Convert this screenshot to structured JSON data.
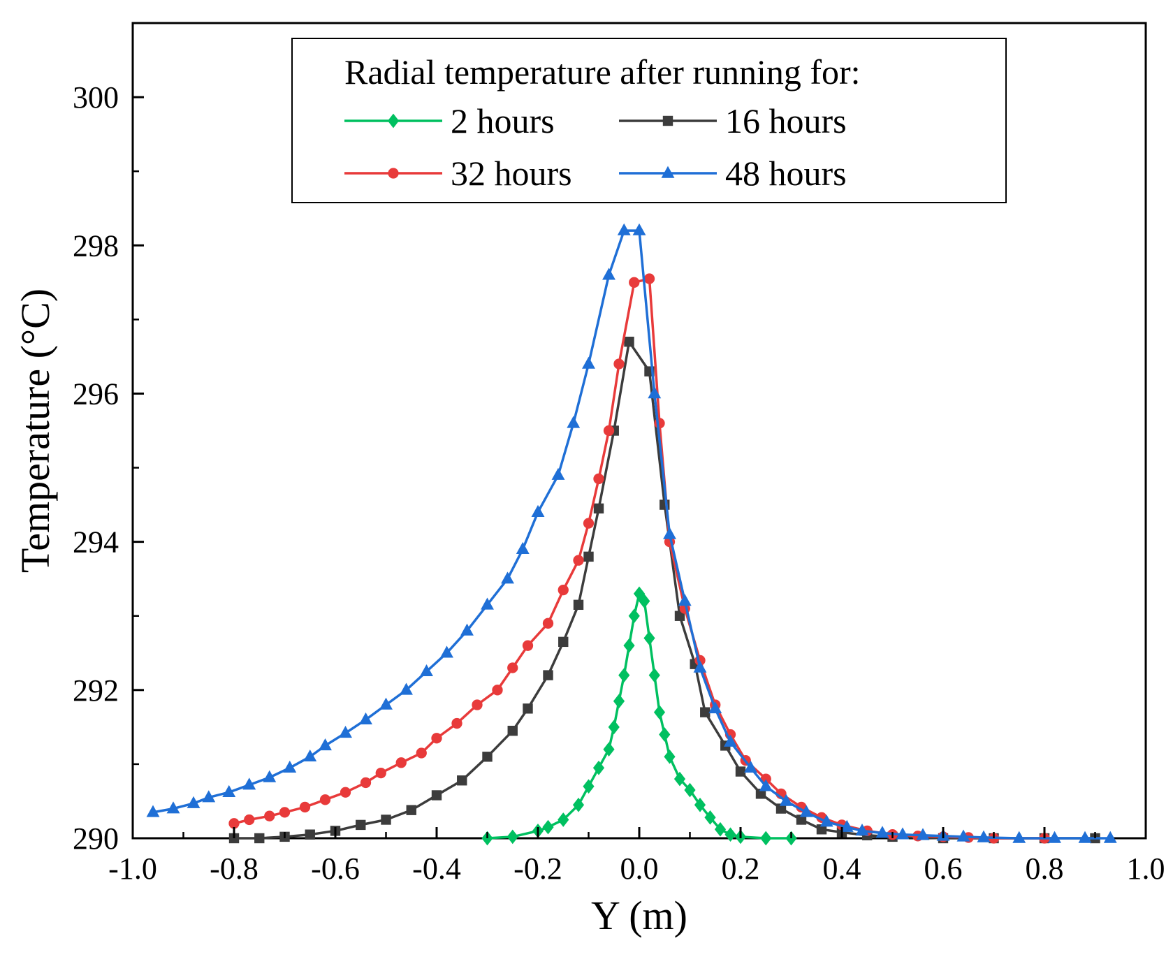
{
  "chart_data": {
    "type": "line",
    "title": "",
    "xlabel": "Y (m)",
    "ylabel": "Temperature (°C)",
    "xlim": [
      -1.0,
      1.0
    ],
    "ylim": [
      290,
      301
    ],
    "x_ticks": [
      "-1.0",
      "-0.8",
      "-0.6",
      "-0.4",
      "-0.2",
      "0.0",
      "0.2",
      "0.4",
      "0.6",
      "0.8",
      "1.0"
    ],
    "y_ticks": [
      "290",
      "292",
      "294",
      "296",
      "298",
      "300"
    ],
    "grid": false,
    "legend": {
      "title": "Radial temperature after running for:",
      "placement": "top-center",
      "columns": 2
    },
    "series": [
      {
        "name": "2 hours",
        "color": "#00c060",
        "marker": "diamond",
        "points": [
          [
            -0.3,
            290.0
          ],
          [
            -0.25,
            290.02
          ],
          [
            -0.2,
            290.1
          ],
          [
            -0.18,
            290.15
          ],
          [
            -0.15,
            290.25
          ],
          [
            -0.12,
            290.45
          ],
          [
            -0.1,
            290.7
          ],
          [
            -0.08,
            290.95
          ],
          [
            -0.06,
            291.2
          ],
          [
            -0.05,
            291.5
          ],
          [
            -0.04,
            291.85
          ],
          [
            -0.03,
            292.2
          ],
          [
            -0.02,
            292.6
          ],
          [
            -0.01,
            293.0
          ],
          [
            0.0,
            293.3
          ],
          [
            0.01,
            293.2
          ],
          [
            0.02,
            292.7
          ],
          [
            0.03,
            292.2
          ],
          [
            0.04,
            291.7
          ],
          [
            0.05,
            291.4
          ],
          [
            0.06,
            291.1
          ],
          [
            0.08,
            290.8
          ],
          [
            0.1,
            290.65
          ],
          [
            0.12,
            290.45
          ],
          [
            0.14,
            290.28
          ],
          [
            0.16,
            290.12
          ],
          [
            0.18,
            290.05
          ],
          [
            0.2,
            290.02
          ],
          [
            0.25,
            290.0
          ],
          [
            0.3,
            290.0
          ]
        ]
      },
      {
        "name": "16 hours",
        "color": "#3c3c3c",
        "marker": "square",
        "points": [
          [
            -0.8,
            290.0
          ],
          [
            -0.75,
            290.0
          ],
          [
            -0.7,
            290.02
          ],
          [
            -0.65,
            290.05
          ],
          [
            -0.6,
            290.1
          ],
          [
            -0.55,
            290.18
          ],
          [
            -0.5,
            290.25
          ],
          [
            -0.45,
            290.38
          ],
          [
            -0.4,
            290.58
          ],
          [
            -0.35,
            290.78
          ],
          [
            -0.3,
            291.1
          ],
          [
            -0.25,
            291.45
          ],
          [
            -0.22,
            291.75
          ],
          [
            -0.18,
            292.2
          ],
          [
            -0.15,
            292.65
          ],
          [
            -0.12,
            293.15
          ],
          [
            -0.1,
            293.8
          ],
          [
            -0.08,
            294.45
          ],
          [
            -0.05,
            295.5
          ],
          [
            -0.02,
            296.7
          ],
          [
            0.02,
            296.3
          ],
          [
            0.05,
            294.5
          ],
          [
            0.08,
            293.0
          ],
          [
            0.11,
            292.35
          ],
          [
            0.13,
            291.7
          ],
          [
            0.17,
            291.25
          ],
          [
            0.2,
            290.9
          ],
          [
            0.24,
            290.6
          ],
          [
            0.28,
            290.4
          ],
          [
            0.32,
            290.25
          ],
          [
            0.36,
            290.12
          ],
          [
            0.4,
            290.08
          ],
          [
            0.45,
            290.04
          ],
          [
            0.5,
            290.02
          ],
          [
            0.6,
            290.0
          ],
          [
            0.7,
            290.0
          ],
          [
            0.8,
            290.0
          ],
          [
            0.9,
            290.0
          ]
        ]
      },
      {
        "name": "32 hours",
        "color": "#e83a3a",
        "marker": "circle",
        "points": [
          [
            -0.8,
            290.2
          ],
          [
            -0.77,
            290.25
          ],
          [
            -0.73,
            290.3
          ],
          [
            -0.7,
            290.35
          ],
          [
            -0.66,
            290.42
          ],
          [
            -0.62,
            290.52
          ],
          [
            -0.58,
            290.62
          ],
          [
            -0.54,
            290.75
          ],
          [
            -0.51,
            290.88
          ],
          [
            -0.47,
            291.02
          ],
          [
            -0.43,
            291.15
          ],
          [
            -0.4,
            291.35
          ],
          [
            -0.36,
            291.55
          ],
          [
            -0.32,
            291.8
          ],
          [
            -0.28,
            292.0
          ],
          [
            -0.25,
            292.3
          ],
          [
            -0.22,
            292.6
          ],
          [
            -0.18,
            292.9
          ],
          [
            -0.15,
            293.35
          ],
          [
            -0.12,
            293.75
          ],
          [
            -0.1,
            294.25
          ],
          [
            -0.08,
            294.85
          ],
          [
            -0.06,
            295.5
          ],
          [
            -0.04,
            296.4
          ],
          [
            -0.01,
            297.5
          ],
          [
            0.02,
            297.55
          ],
          [
            0.04,
            295.6
          ],
          [
            0.06,
            294.0
          ],
          [
            0.09,
            293.1
          ],
          [
            0.12,
            292.4
          ],
          [
            0.15,
            291.8
          ],
          [
            0.18,
            291.4
          ],
          [
            0.21,
            291.05
          ],
          [
            0.25,
            290.8
          ],
          [
            0.28,
            290.6
          ],
          [
            0.32,
            290.42
          ],
          [
            0.36,
            290.28
          ],
          [
            0.4,
            290.18
          ],
          [
            0.45,
            290.1
          ],
          [
            0.5,
            290.05
          ],
          [
            0.55,
            290.03
          ],
          [
            0.6,
            290.02
          ],
          [
            0.65,
            290.01
          ],
          [
            0.7,
            290.0
          ],
          [
            0.8,
            290.0
          ]
        ]
      },
      {
        "name": "48 hours",
        "color": "#1f6fd6",
        "marker": "triangle",
        "points": [
          [
            -0.96,
            290.35
          ],
          [
            -0.92,
            290.4
          ],
          [
            -0.88,
            290.47
          ],
          [
            -0.85,
            290.55
          ],
          [
            -0.81,
            290.62
          ],
          [
            -0.77,
            290.72
          ],
          [
            -0.73,
            290.82
          ],
          [
            -0.69,
            290.95
          ],
          [
            -0.65,
            291.1
          ],
          [
            -0.62,
            291.25
          ],
          [
            -0.58,
            291.42
          ],
          [
            -0.54,
            291.6
          ],
          [
            -0.5,
            291.8
          ],
          [
            -0.46,
            292.0
          ],
          [
            -0.42,
            292.25
          ],
          [
            -0.38,
            292.5
          ],
          [
            -0.34,
            292.8
          ],
          [
            -0.3,
            293.15
          ],
          [
            -0.26,
            293.5
          ],
          [
            -0.23,
            293.9
          ],
          [
            -0.2,
            294.4
          ],
          [
            -0.16,
            294.9
          ],
          [
            -0.13,
            295.6
          ],
          [
            -0.1,
            296.4
          ],
          [
            -0.06,
            297.6
          ],
          [
            -0.03,
            298.2
          ],
          [
            0.0,
            298.2
          ],
          [
            0.03,
            296.0
          ],
          [
            0.06,
            294.1
          ],
          [
            0.09,
            293.2
          ],
          [
            0.12,
            292.3
          ],
          [
            0.15,
            291.75
          ],
          [
            0.18,
            291.3
          ],
          [
            0.22,
            290.95
          ],
          [
            0.25,
            290.7
          ],
          [
            0.29,
            290.5
          ],
          [
            0.33,
            290.35
          ],
          [
            0.37,
            290.22
          ],
          [
            0.41,
            290.15
          ],
          [
            0.44,
            290.1
          ],
          [
            0.48,
            290.07
          ],
          [
            0.52,
            290.05
          ],
          [
            0.56,
            290.04
          ],
          [
            0.6,
            290.03
          ],
          [
            0.64,
            290.02
          ],
          [
            0.68,
            290.01
          ],
          [
            0.75,
            290.0
          ],
          [
            0.82,
            290.0
          ],
          [
            0.88,
            290.0
          ],
          [
            0.93,
            290.0
          ]
        ]
      }
    ]
  }
}
